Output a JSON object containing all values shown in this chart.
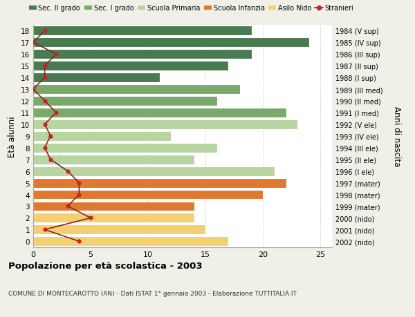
{
  "ages": [
    18,
    17,
    16,
    15,
    14,
    13,
    12,
    11,
    10,
    9,
    8,
    7,
    6,
    5,
    4,
    3,
    2,
    1,
    0
  ],
  "years": [
    "1984 (V sup)",
    "1985 (IV sup)",
    "1986 (III sup)",
    "1987 (II sup)",
    "1988 (I sup)",
    "1989 (III med)",
    "1990 (II med)",
    "1991 (I med)",
    "1992 (V ele)",
    "1993 (IV ele)",
    "1994 (III ele)",
    "1995 (II ele)",
    "1996 (I ele)",
    "1997 (mater)",
    "1998 (mater)",
    "1999 (mater)",
    "2000 (nido)",
    "2001 (nido)",
    "2002 (nido)"
  ],
  "bar_values": [
    19,
    24,
    19,
    17,
    11,
    18,
    16,
    22,
    23,
    12,
    16,
    14,
    21,
    22,
    20,
    14,
    14,
    15,
    17
  ],
  "stranieri": [
    1,
    0,
    2,
    1,
    1,
    0,
    1,
    2,
    1,
    1.5,
    1,
    1.5,
    3,
    4,
    4,
    3,
    5,
    1,
    4
  ],
  "bar_colors_by_age": {
    "18": "#4a7a50",
    "17": "#4a7a50",
    "16": "#4a7a50",
    "15": "#4a7a50",
    "14": "#4a7a50",
    "13": "#7aaa6a",
    "12": "#7aaa6a",
    "11": "#7aaa6a",
    "10": "#b8d4a0",
    "9": "#b8d4a0",
    "8": "#b8d4a0",
    "7": "#b8d4a0",
    "6": "#b8d4a0",
    "5": "#e07830",
    "4": "#e07830",
    "3": "#e07830",
    "2": "#f5d070",
    "1": "#f5d070",
    "0": "#f5d070"
  },
  "stranieri_color": "#cc2222",
  "stranieri_line_color": "#882222",
  "ylabel": "Età alunni",
  "right_ylabel": "Anni di nascita",
  "title": "Popolazione per età scolastica - 2003",
  "subtitle": "COMUNE DI MONTECAROTTO (AN) - Dati ISTAT 1° gennaio 2003 - Elaborazione TUTTITALIA.IT",
  "xlim": [
    0,
    26
  ],
  "legend_labels": [
    "Sec. II grado",
    "Sec. I grado",
    "Scuola Primaria",
    "Scuola Infanzia",
    "Asilo Nido",
    "Stranieri"
  ],
  "legend_colors": [
    "#4a7a50",
    "#7aaa6a",
    "#b8d4a0",
    "#e07830",
    "#f5d070",
    "#cc2222"
  ],
  "bg_color": "#f0f0e8",
  "plot_bg_color": "#ffffff"
}
